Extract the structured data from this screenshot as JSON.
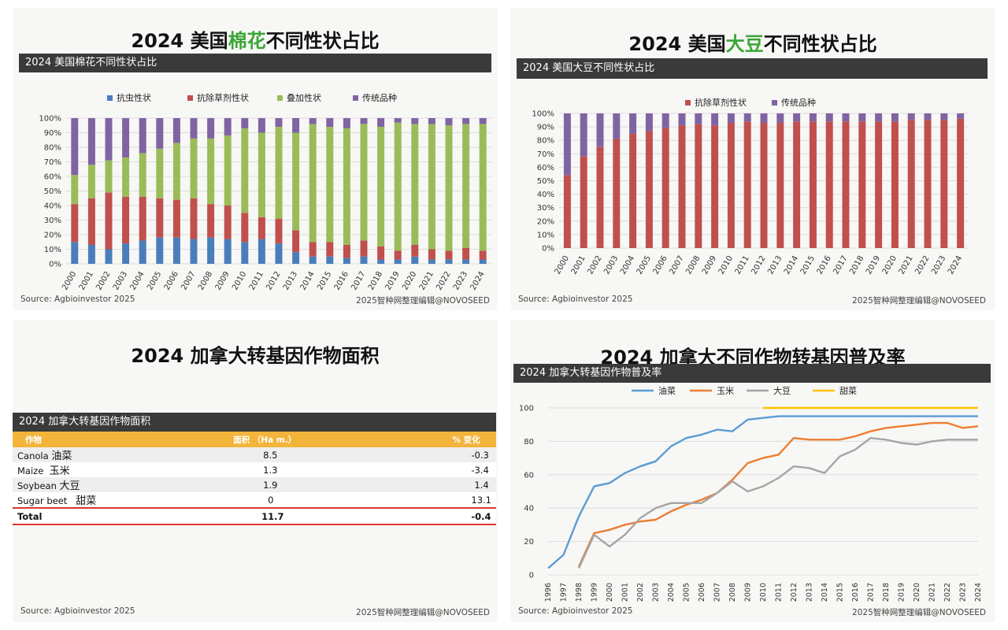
{
  "panels": {
    "cotton": {
      "title_pre": "2024 美国",
      "title_hl": "棉花",
      "title_post": "不同性状占比",
      "header": "2024 美国棉花不同性状占比",
      "source": "Source: Agbioinvestor 2025",
      "credit": "2025智种网整理编辑@NOVOSEED"
    },
    "soy": {
      "title_pre": "2024 美国",
      "title_hl": "大豆",
      "title_post": "不同性状占比",
      "header": "2024 美国大豆不同性状占比",
      "source": "Source: Agbioinvestor 2025",
      "credit": "2025智种网整理编辑@NOVOSEED"
    },
    "canada_area": {
      "title": "2024 加拿大转基因作物面积",
      "header": "2024 加拿大转基因作物面积",
      "source": "Source: Agbioinvestor 2025",
      "credit": "2025智种网整理编辑@NOVOSEED"
    },
    "canada_adoption": {
      "title": "2024 加拿大不同作物转基因普及率",
      "header": "2024 加拿大转基因作物普及率",
      "source": "Source: Agbioinvestor 2025",
      "credit": "2025智种网整理编辑@NOVOSEED"
    }
  },
  "colors": {
    "insect": "#4a7ebb",
    "herbicide": "#c0504d",
    "stacked": "#9bbb59",
    "conventional": "#8064a2",
    "canola": "#5b9bd5",
    "maize": "#ed7d31",
    "soybean": "#a5a5a5",
    "sugarbeet": "#ffc000"
  },
  "chart_data": [
    {
      "type": "bar",
      "stacked": true,
      "categories": [
        "2000",
        "2001",
        "2002",
        "2003",
        "2004",
        "2005",
        "2006",
        "2007",
        "2008",
        "2009",
        "2010",
        "2011",
        "2012",
        "2013",
        "2014",
        "2015",
        "2016",
        "2017",
        "2018",
        "2019",
        "2020",
        "2021",
        "2022",
        "2023",
        "2024"
      ],
      "series": [
        {
          "name": "抗虫性状",
          "values": [
            15,
            13,
            10,
            14,
            16,
            18,
            18,
            17,
            18,
            17,
            15,
            17,
            14,
            8,
            5,
            5,
            4,
            5,
            3,
            3,
            5,
            3,
            3,
            3,
            3
          ]
        },
        {
          "name": "抗除草剂性状",
          "values": [
            26,
            32,
            39,
            32,
            30,
            27,
            26,
            28,
            23,
            23,
            20,
            15,
            17,
            15,
            10,
            10,
            9,
            11,
            9,
            6,
            8,
            7,
            6,
            8,
            6
          ]
        },
        {
          "name": "叠加性状",
          "values": [
            20,
            23,
            22,
            27,
            30,
            34,
            39,
            41,
            45,
            48,
            58,
            58,
            63,
            67,
            81,
            79,
            80,
            80,
            82,
            88,
            83,
            86,
            86,
            85,
            87
          ]
        },
        {
          "name": "传统品种",
          "values": [
            39,
            32,
            29,
            27,
            24,
            21,
            17,
            14,
            14,
            12,
            7,
            10,
            6,
            10,
            4,
            6,
            7,
            4,
            6,
            3,
            4,
            4,
            5,
            4,
            4
          ]
        }
      ],
      "ylim": [
        0,
        100
      ],
      "legend": "top",
      "grid": true
    },
    {
      "type": "bar",
      "stacked": true,
      "categories": [
        "2000",
        "2001",
        "2002",
        "2003",
        "2004",
        "2005",
        "2006",
        "2007",
        "2008",
        "2009",
        "2010",
        "2011",
        "2012",
        "2013",
        "2014",
        "2015",
        "2016",
        "2017",
        "2018",
        "2019",
        "2020",
        "2021",
        "2022",
        "2023",
        "2024"
      ],
      "series": [
        {
          "name": "抗除草剂性状",
          "values": [
            54,
            68,
            75,
            81,
            85,
            87,
            89,
            91,
            92,
            91,
            93,
            94,
            93,
            93,
            94,
            94,
            94,
            94,
            94,
            94,
            94,
            95,
            95,
            95,
            96
          ]
        },
        {
          "name": "传统品种",
          "values": [
            46,
            32,
            25,
            19,
            15,
            13,
            11,
            9,
            8,
            9,
            7,
            6,
            7,
            7,
            6,
            6,
            6,
            6,
            6,
            6,
            6,
            5,
            5,
            5,
            4
          ]
        }
      ],
      "ylim": [
        0,
        100
      ],
      "legend": "top",
      "grid": true
    },
    {
      "type": "table",
      "columns": [
        "作物",
        "面积 （Ha m.）",
        "% 变化"
      ],
      "rows": [
        {
          "crop_en": "Canola",
          "crop_cn": "油菜",
          "area": "8.5",
          "change": "-0.3"
        },
        {
          "crop_en": "Maize",
          "crop_cn": "玉米",
          "area": "1.3",
          "change": "-3.4"
        },
        {
          "crop_en": "Soybean",
          "crop_cn": "大豆",
          "area": "1.9",
          "change": "1.4"
        },
        {
          "crop_en": "Sugar beet",
          "crop_cn": "甜菜",
          "area": "0",
          "change": "13.1"
        }
      ],
      "total": {
        "label": "Total",
        "area": "11.7",
        "change": "-0.4"
      }
    },
    {
      "type": "line",
      "x": [
        "1996",
        "1997",
        "1998",
        "1999",
        "2000",
        "2001",
        "2002",
        "2003",
        "2004",
        "2005",
        "2006",
        "2007",
        "2008",
        "2009",
        "2010",
        "2011",
        "2012",
        "2013",
        "2014",
        "2015",
        "2016",
        "2017",
        "2018",
        "2019",
        "2020",
        "2021",
        "2022",
        "2023",
        "2024"
      ],
      "series": [
        {
          "name": "油菜",
          "values": [
            4,
            12,
            35,
            53,
            55,
            61,
            65,
            68,
            77,
            82,
            84,
            87,
            86,
            93,
            94,
            95,
            95,
            95,
            95,
            95,
            95,
            95,
            95,
            95,
            95,
            95,
            95,
            95,
            95
          ]
        },
        {
          "name": "玉米",
          "values": [
            null,
            null,
            5,
            25,
            27,
            30,
            32,
            33,
            38,
            42,
            45,
            49,
            57,
            67,
            70,
            72,
            82,
            81,
            81,
            81,
            83,
            86,
            88,
            89,
            90,
            91,
            91,
            88,
            89
          ]
        },
        {
          "name": "大豆",
          "values": [
            null,
            null,
            4,
            24,
            17,
            24,
            34,
            40,
            43,
            43,
            43,
            49,
            56,
            50,
            53,
            58,
            65,
            64,
            61,
            71,
            75,
            82,
            81,
            79,
            78,
            80,
            81,
            81,
            81
          ]
        },
        {
          "name": "甜菜",
          "values": [
            null,
            null,
            null,
            null,
            null,
            null,
            null,
            null,
            null,
            null,
            null,
            null,
            null,
            null,
            100,
            100,
            100,
            100,
            100,
            100,
            100,
            100,
            100,
            100,
            100,
            100,
            100,
            100,
            100
          ]
        }
      ],
      "ylim": [
        0,
        100
      ],
      "yticks": [
        0,
        20,
        40,
        60,
        80,
        100
      ],
      "legend": "top",
      "grid": true
    }
  ]
}
